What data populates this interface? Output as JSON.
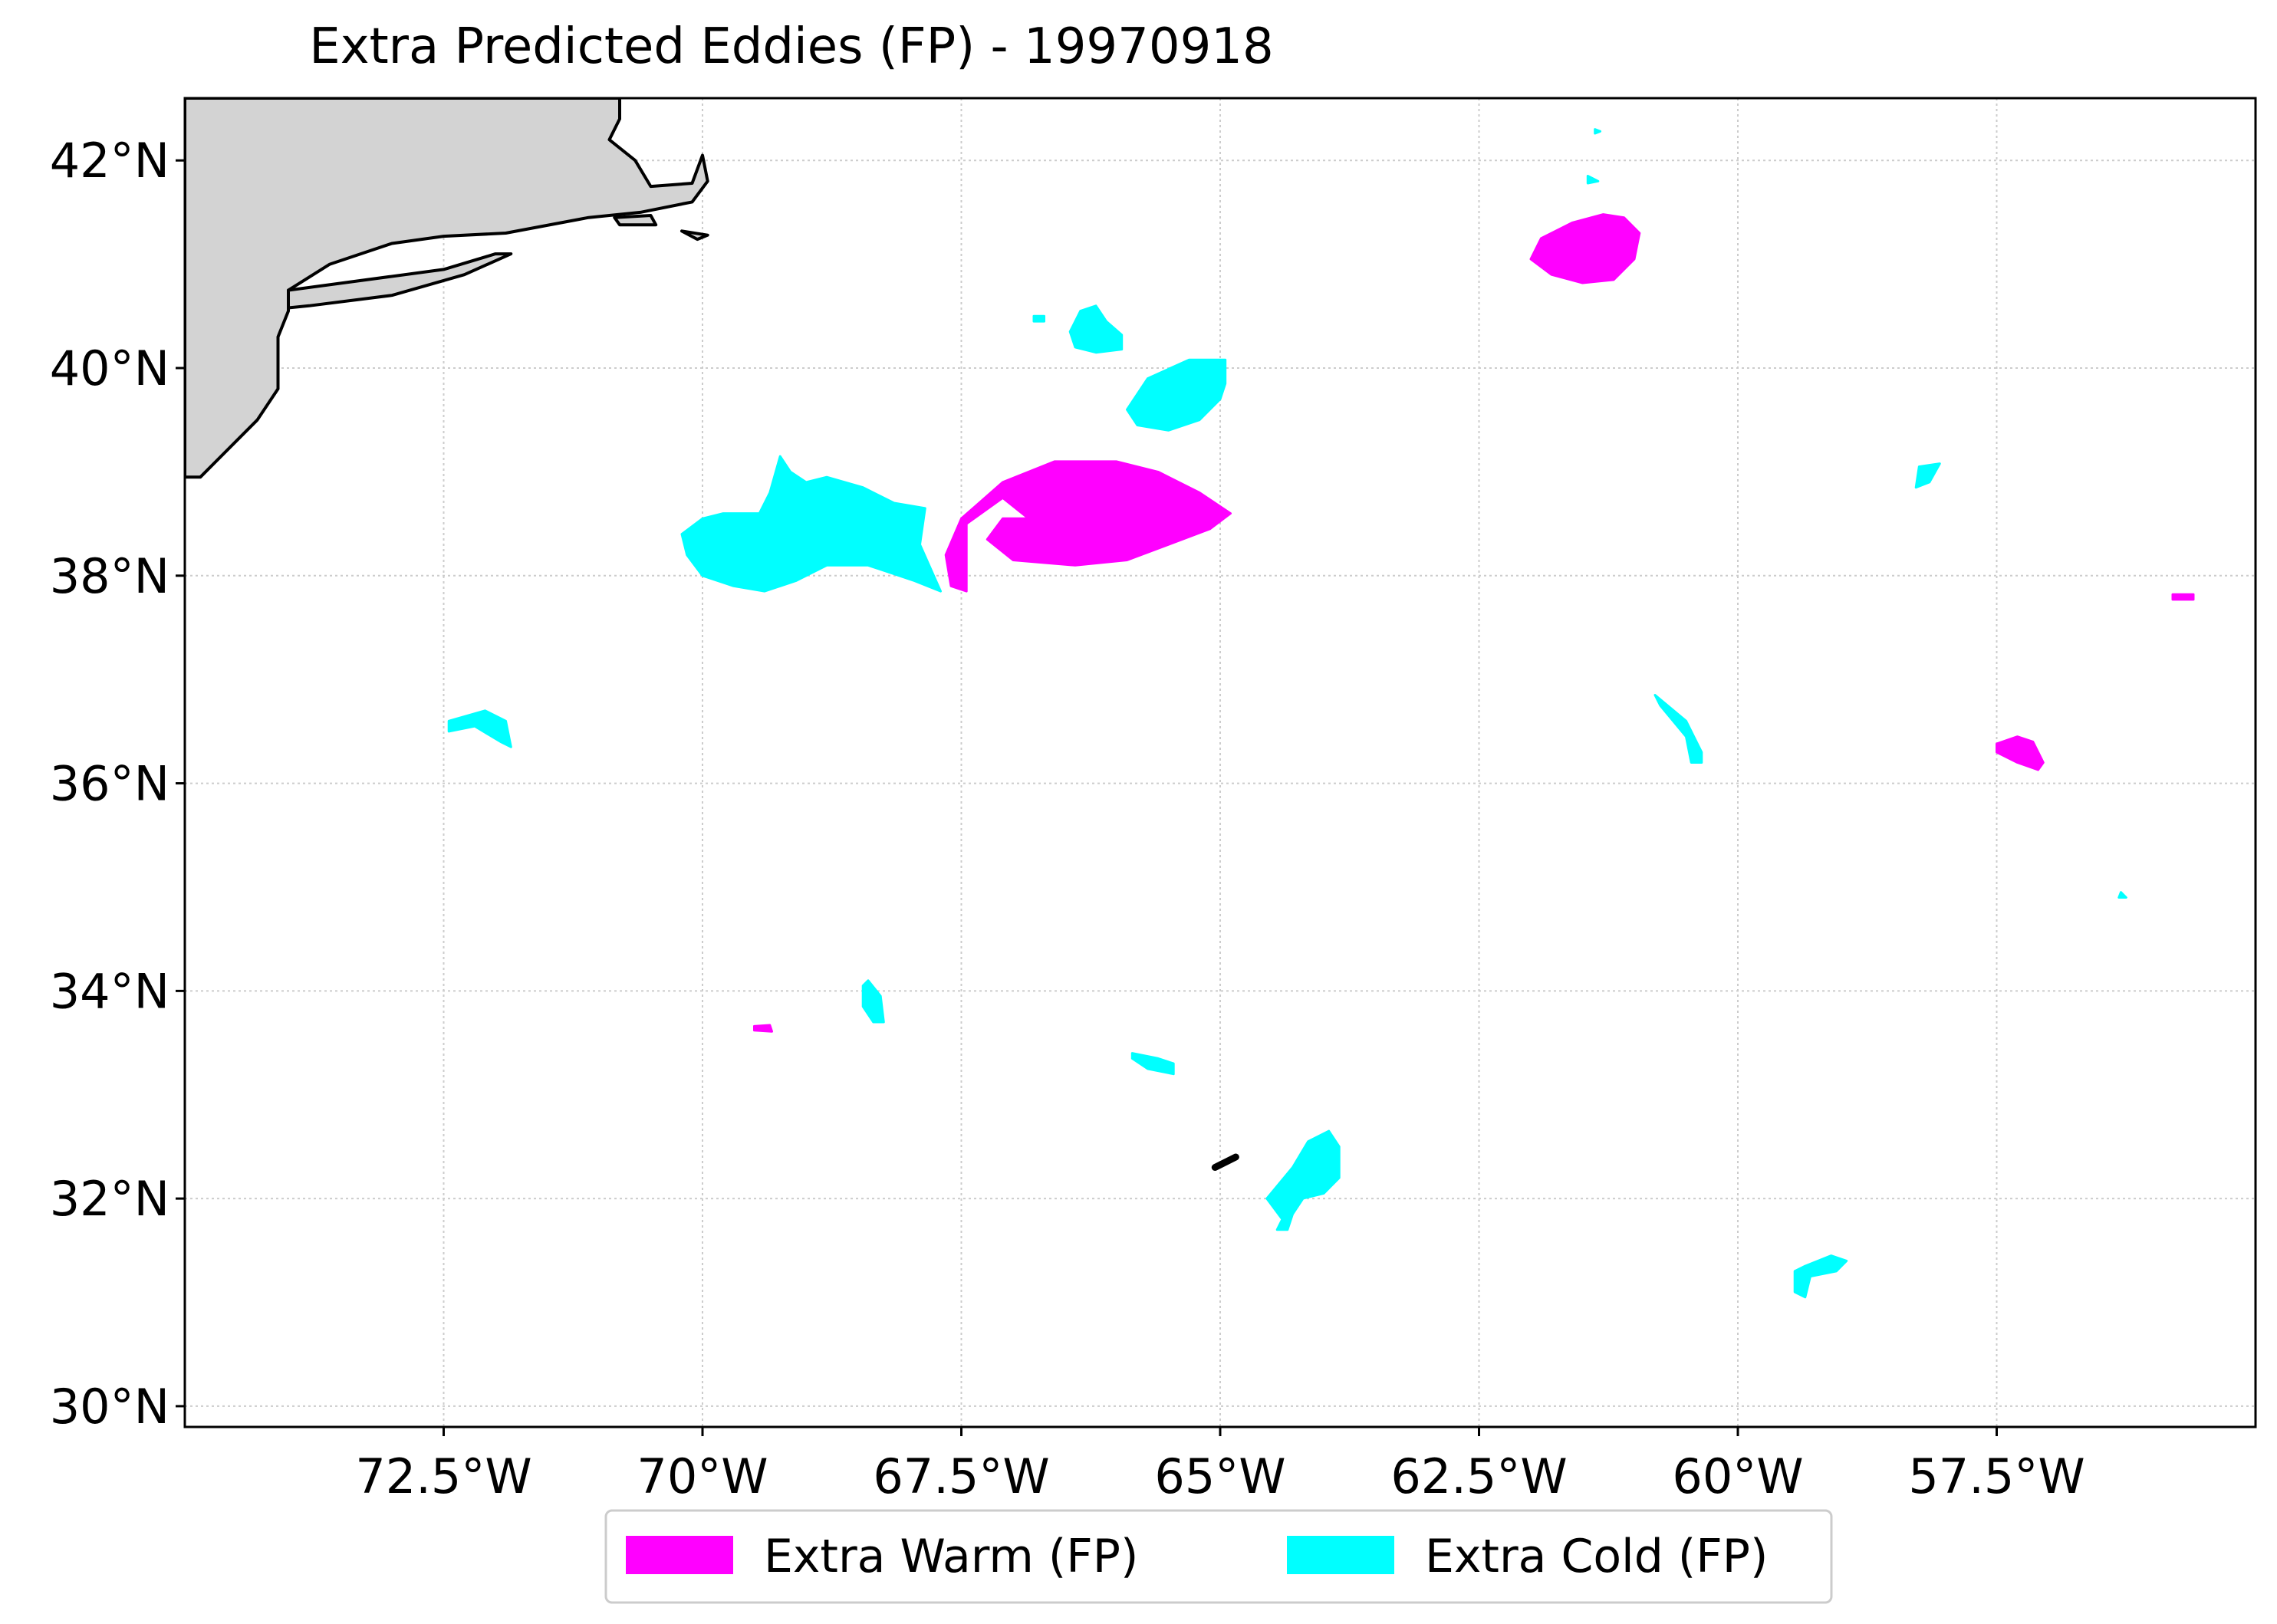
{
  "title": "Extra Predicted Eddies (FP) - 19970918",
  "map": {
    "lon_range": [
      -75,
      -55
    ],
    "lat_range": [
      29.8,
      42.6
    ],
    "grid": true,
    "land_color": "#d3d3d3",
    "coastline_color": "#000000",
    "x_ticks": [
      {
        "value": -72.5,
        "label": "72.5°W"
      },
      {
        "value": -70,
        "label": "70°W"
      },
      {
        "value": -67.5,
        "label": "67.5°W"
      },
      {
        "value": -65,
        "label": "65°W"
      },
      {
        "value": -62.5,
        "label": "62.5°W"
      },
      {
        "value": -60,
        "label": "60°W"
      },
      {
        "value": -57.5,
        "label": "57.5°W"
      }
    ],
    "y_ticks": [
      {
        "value": 42,
        "label": "42°N"
      },
      {
        "value": 40,
        "label": "40°N"
      },
      {
        "value": 38,
        "label": "38°N"
      },
      {
        "value": 36,
        "label": "36°N"
      },
      {
        "value": 34,
        "label": "34°N"
      },
      {
        "value": 32,
        "label": "32°N"
      },
      {
        "value": 30,
        "label": "30°N"
      }
    ]
  },
  "legend": {
    "placement": "bottom-center",
    "items": [
      {
        "key": "warm",
        "label": "Extra Warm (FP)",
        "color": "#ff00ff"
      },
      {
        "key": "cold",
        "label": "Extra Cold (FP)",
        "color": "#00ffff"
      }
    ]
  },
  "eddies": [
    {
      "type": "warm",
      "points": [
        [
          -62.0,
          41.05
        ],
        [
          -61.9,
          41.25
        ],
        [
          -61.6,
          41.4
        ],
        [
          -61.3,
          41.48
        ],
        [
          -61.1,
          41.45
        ],
        [
          -60.95,
          41.3
        ],
        [
          -61.0,
          41.05
        ],
        [
          -61.2,
          40.85
        ],
        [
          -61.5,
          40.82
        ],
        [
          -61.8,
          40.9
        ]
      ]
    },
    {
      "type": "warm",
      "points": [
        [
          -67.6,
          37.9
        ],
        [
          -67.65,
          38.2
        ],
        [
          -67.5,
          38.55
        ],
        [
          -67.1,
          38.9
        ],
        [
          -66.6,
          39.1
        ],
        [
          -66.0,
          39.1
        ],
        [
          -65.6,
          39.0
        ],
        [
          -65.2,
          38.8
        ],
        [
          -64.9,
          38.6
        ],
        [
          -65.1,
          38.45
        ],
        [
          -65.5,
          38.3
        ],
        [
          -65.9,
          38.15
        ],
        [
          -66.4,
          38.1
        ],
        [
          -67.0,
          38.15
        ],
        [
          -67.25,
          38.35
        ],
        [
          -67.1,
          38.55
        ],
        [
          -66.85,
          38.55
        ],
        [
          -67.1,
          38.75
        ],
        [
          -67.45,
          38.5
        ],
        [
          -67.45,
          38.1
        ],
        [
          -67.45,
          37.85
        ]
      ]
    },
    {
      "type": "warm",
      "points": [
        [
          -57.5,
          36.38
        ],
        [
          -57.3,
          36.45
        ],
        [
          -57.15,
          36.4
        ],
        [
          -57.05,
          36.2
        ],
        [
          -57.1,
          36.13
        ],
        [
          -57.3,
          36.2
        ],
        [
          -57.5,
          36.3
        ]
      ]
    },
    {
      "type": "warm",
      "points": [
        [
          -55.8,
          37.82
        ],
        [
          -55.6,
          37.82
        ],
        [
          -55.6,
          37.77
        ],
        [
          -55.8,
          37.77
        ]
      ]
    },
    {
      "type": "warm",
      "points": [
        [
          -69.5,
          33.66
        ],
        [
          -69.35,
          33.67
        ],
        [
          -69.33,
          33.61
        ],
        [
          -69.5,
          33.62
        ]
      ]
    },
    {
      "type": "cold",
      "points": [
        [
          -70.2,
          38.4
        ],
        [
          -70.0,
          38.55
        ],
        [
          -69.8,
          38.6
        ],
        [
          -69.45,
          38.6
        ],
        [
          -69.35,
          38.8
        ],
        [
          -69.25,
          39.15
        ],
        [
          -69.15,
          39.0
        ],
        [
          -69.0,
          38.9
        ],
        [
          -68.8,
          38.95
        ],
        [
          -68.45,
          38.85
        ],
        [
          -68.15,
          38.7
        ],
        [
          -67.85,
          38.65
        ],
        [
          -67.9,
          38.3
        ],
        [
          -67.7,
          37.85
        ],
        [
          -67.95,
          37.95
        ],
        [
          -68.4,
          38.1
        ],
        [
          -68.8,
          38.1
        ],
        [
          -69.1,
          37.95
        ],
        [
          -69.4,
          37.85
        ],
        [
          -69.7,
          37.9
        ],
        [
          -70.0,
          38.0
        ],
        [
          -70.15,
          38.2
        ]
      ]
    },
    {
      "type": "cold",
      "points": [
        [
          -65.9,
          39.6
        ],
        [
          -65.7,
          39.9
        ],
        [
          -65.3,
          40.08
        ],
        [
          -64.95,
          40.08
        ],
        [
          -64.95,
          39.85
        ],
        [
          -65.0,
          39.7
        ],
        [
          -65.2,
          39.5
        ],
        [
          -65.5,
          39.4
        ],
        [
          -65.8,
          39.45
        ]
      ]
    },
    {
      "type": "cold",
      "points": [
        [
          -66.45,
          40.35
        ],
        [
          -66.35,
          40.55
        ],
        [
          -66.2,
          40.6
        ],
        [
          -66.1,
          40.45
        ],
        [
          -65.95,
          40.32
        ],
        [
          -65.95,
          40.18
        ],
        [
          -66.2,
          40.15
        ],
        [
          -66.4,
          40.2
        ]
      ]
    },
    {
      "type": "cold",
      "points": [
        [
          -66.8,
          40.5
        ],
        [
          -66.7,
          40.5
        ],
        [
          -66.7,
          40.45
        ],
        [
          -66.8,
          40.45
        ]
      ]
    },
    {
      "type": "cold",
      "points": [
        [
          -64.4,
          31.8
        ],
        [
          -64.55,
          32.0
        ],
        [
          -64.3,
          32.3
        ],
        [
          -64.15,
          32.55
        ],
        [
          -63.95,
          32.65
        ],
        [
          -63.85,
          32.5
        ],
        [
          -63.85,
          32.2
        ],
        [
          -64.0,
          32.05
        ],
        [
          -64.2,
          32.0
        ],
        [
          -64.3,
          31.85
        ],
        [
          -64.35,
          31.7
        ],
        [
          -64.45,
          31.7
        ]
      ]
    },
    {
      "type": "cold",
      "points": [
        [
          -65.85,
          33.4
        ],
        [
          -65.6,
          33.35
        ],
        [
          -65.45,
          33.3
        ],
        [
          -65.45,
          33.2
        ],
        [
          -65.7,
          33.25
        ],
        [
          -65.85,
          33.35
        ]
      ]
    },
    {
      "type": "cold",
      "points": [
        [
          -68.4,
          34.1
        ],
        [
          -68.28,
          33.95
        ],
        [
          -68.25,
          33.7
        ],
        [
          -68.35,
          33.7
        ],
        [
          -68.45,
          33.85
        ],
        [
          -68.45,
          34.05
        ]
      ]
    },
    {
      "type": "cold",
      "points": [
        [
          -72.45,
          36.6
        ],
        [
          -72.1,
          36.7
        ],
        [
          -71.9,
          36.6
        ],
        [
          -71.85,
          36.35
        ],
        [
          -71.95,
          36.4
        ],
        [
          -72.2,
          36.55
        ],
        [
          -72.45,
          36.5
        ]
      ]
    },
    {
      "type": "cold",
      "points": [
        [
          -60.8,
          36.85
        ],
        [
          -60.5,
          36.6
        ],
        [
          -60.35,
          36.3
        ],
        [
          -60.35,
          36.2
        ],
        [
          -60.45,
          36.2
        ],
        [
          -60.5,
          36.45
        ],
        [
          -60.75,
          36.75
        ]
      ]
    },
    {
      "type": "cold",
      "points": [
        [
          -59.35,
          31.35
        ],
        [
          -59.1,
          31.45
        ],
        [
          -58.95,
          31.4
        ],
        [
          -59.05,
          31.3
        ],
        [
          -59.3,
          31.25
        ],
        [
          -59.35,
          31.05
        ],
        [
          -59.45,
          31.1
        ],
        [
          -59.45,
          31.3
        ]
      ]
    },
    {
      "type": "cold",
      "points": [
        [
          -58.25,
          39.05
        ],
        [
          -58.05,
          39.08
        ],
        [
          -58.15,
          38.9
        ],
        [
          -58.28,
          38.85
        ]
      ]
    },
    {
      "type": "cold",
      "points": [
        [
          -61.45,
          41.85
        ],
        [
          -61.35,
          41.8
        ],
        [
          -61.45,
          41.78
        ]
      ]
    },
    {
      "type": "cold",
      "points": [
        [
          -61.38,
          42.3
        ],
        [
          -61.33,
          42.28
        ],
        [
          -61.38,
          42.26
        ]
      ]
    },
    {
      "type": "cold",
      "points": [
        [
          -56.3,
          34.95
        ],
        [
          -56.25,
          34.9
        ],
        [
          -56.32,
          34.9
        ]
      ]
    }
  ],
  "land": {
    "mainland": [
      [
        -75,
        42.6
      ],
      [
        -70.8,
        42.6
      ],
      [
        -70.8,
        42.4
      ],
      [
        -70.9,
        42.2
      ],
      [
        -70.65,
        42.0
      ],
      [
        -70.5,
        41.75
      ],
      [
        -70.1,
        41.78
      ],
      [
        -70.0,
        42.05
      ],
      [
        -69.95,
        41.8
      ],
      [
        -70.1,
        41.6
      ],
      [
        -70.6,
        41.5
      ],
      [
        -71.1,
        41.45
      ],
      [
        -71.9,
        41.3
      ],
      [
        -72.5,
        41.27
      ],
      [
        -73.0,
        41.2
      ],
      [
        -73.6,
        41.0
      ],
      [
        -74.0,
        40.75
      ],
      [
        -74.0,
        40.55
      ],
      [
        -74.1,
        40.3
      ],
      [
        -74.1,
        39.8
      ],
      [
        -74.3,
        39.5
      ],
      [
        -74.7,
        39.1
      ],
      [
        -74.85,
        38.95
      ],
      [
        -75,
        38.95
      ]
    ],
    "islands": [
      [
        [
          -74.0,
          40.75
        ],
        [
          -72.5,
          40.95
        ],
        [
          -72.0,
          41.1
        ],
        [
          -71.85,
          41.1
        ],
        [
          -72.3,
          40.9
        ],
        [
          -73.0,
          40.7
        ],
        [
          -73.8,
          40.6
        ],
        [
          -74.0,
          40.58
        ]
      ],
      [
        [
          -70.85,
          41.45
        ],
        [
          -70.5,
          41.47
        ],
        [
          -70.45,
          41.38
        ],
        [
          -70.8,
          41.38
        ]
      ],
      [
        [
          -70.2,
          41.32
        ],
        [
          -69.95,
          41.28
        ],
        [
          -70.05,
          41.24
        ]
      ]
    ]
  },
  "markers": [
    {
      "type": "black-segment",
      "points": [
        [
          -65.05,
          32.3
        ],
        [
          -64.85,
          32.4
        ]
      ]
    }
  ]
}
